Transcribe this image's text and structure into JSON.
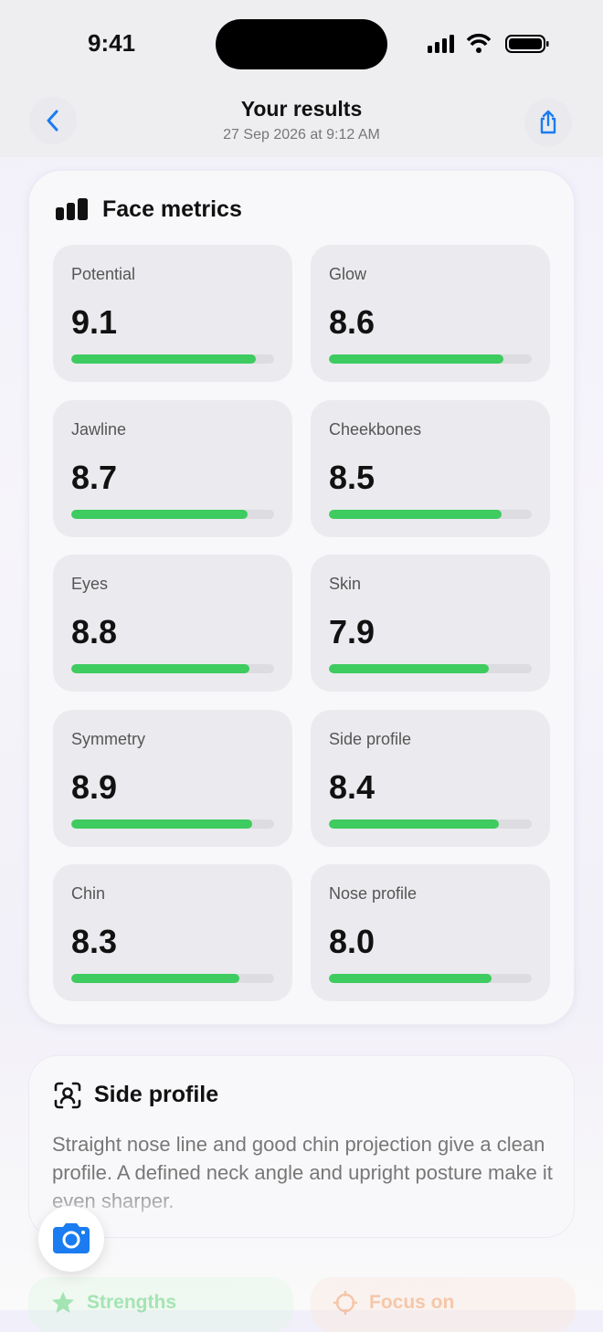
{
  "status_bar": {
    "time": "9:41"
  },
  "header": {
    "title": "Your results",
    "date": "27 Sep 2026 at 9:12 AM"
  },
  "face_metrics": {
    "title": "Face metrics",
    "xlim": [
      0,
      10
    ],
    "items": [
      {
        "name": "Potential",
        "value": 9.1
      },
      {
        "name": "Glow",
        "value": 8.6
      },
      {
        "name": "Jawline",
        "value": 8.7
      },
      {
        "name": "Cheekbones",
        "value": 8.5
      },
      {
        "name": "Eyes",
        "value": 8.8
      },
      {
        "name": "Skin",
        "value": 7.9
      },
      {
        "name": "Symmetry",
        "value": 8.9
      },
      {
        "name": "Side profile",
        "value": 8.4
      },
      {
        "name": "Chin",
        "value": 8.3
      },
      {
        "name": "Nose profile",
        "value": 8.0,
        "label": "8.0"
      }
    ]
  },
  "side_profile": {
    "title": "Side profile",
    "text": "Straight nose line and good chin projection give a clean profile. A defined neck angle and upright posture make it even sharper."
  },
  "chips": {
    "strengths": "Strengths",
    "focus_on": "Focus on"
  }
}
